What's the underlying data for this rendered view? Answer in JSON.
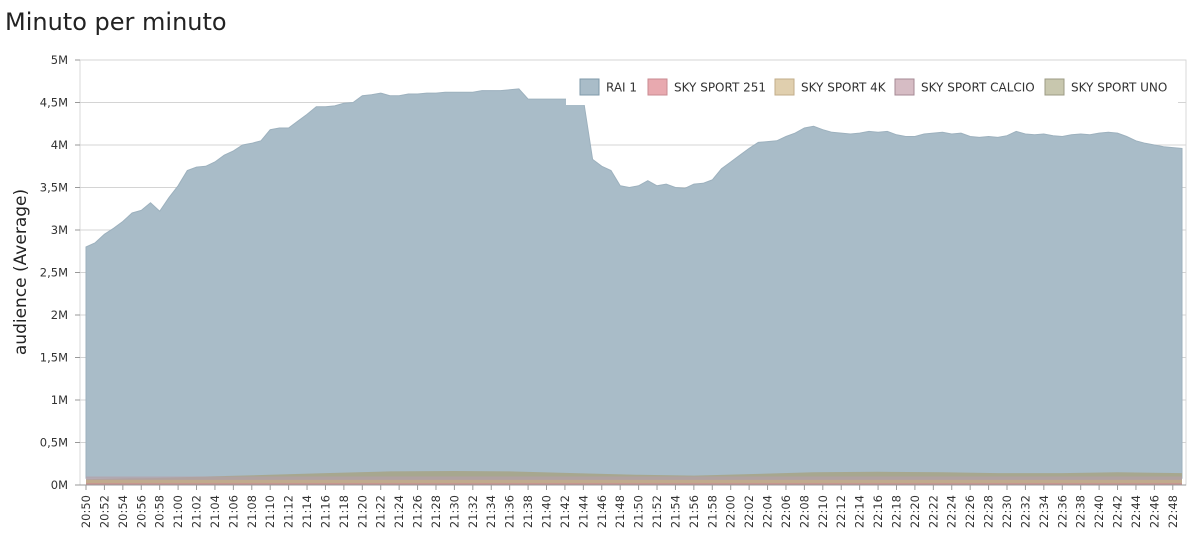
{
  "chart_data": {
    "type": "area",
    "title": "Minuto per minuto",
    "ylabel": "audience (Average)",
    "xlabel": "",
    "ylim": [
      0,
      5000000
    ],
    "yticks": [
      {
        "value": 0,
        "label": "0M"
      },
      {
        "value": 500000,
        "label": "0,5M"
      },
      {
        "value": 1000000,
        "label": "1M"
      },
      {
        "value": 1500000,
        "label": "1,5M"
      },
      {
        "value": 2000000,
        "label": "2M"
      },
      {
        "value": 2500000,
        "label": "2,5M"
      },
      {
        "value": 3000000,
        "label": "3M"
      },
      {
        "value": 3500000,
        "label": "3,5M"
      },
      {
        "value": 4000000,
        "label": "4M"
      },
      {
        "value": 4500000,
        "label": "4,5M"
      },
      {
        "value": 5000000,
        "label": "5M"
      }
    ],
    "x_tick_labels": [
      "20:50",
      "20:52",
      "20:54",
      "20:56",
      "20:58",
      "21:00",
      "21:02",
      "21:04",
      "21:06",
      "21:08",
      "21:10",
      "21:12",
      "21:14",
      "21:16",
      "21:18",
      "21:20",
      "21:22",
      "21:24",
      "21:26",
      "21:28",
      "21:30",
      "21:32",
      "21:34",
      "21:36",
      "21:38",
      "21:40",
      "21:42",
      "21:44",
      "21:46",
      "21:48",
      "21:50",
      "21:52",
      "21:54",
      "21:56",
      "21:58",
      "22:00",
      "22:02",
      "22:04",
      "22:06",
      "22:08",
      "22:10",
      "22:12",
      "22:14",
      "22:16",
      "22:18",
      "22:20",
      "22:22",
      "22:24",
      "22:26",
      "22:28",
      "22:30",
      "22:32",
      "22:34",
      "22:36",
      "22:38",
      "22:40",
      "22:42",
      "22:44",
      "22:46",
      "22:48"
    ],
    "x_minutes_total": 120,
    "grid": true,
    "legend_position": "top-right",
    "series": [
      {
        "name": "RAI 1",
        "color": "#a9bcc8",
        "legend_fill": "#a9bcc8",
        "legend_stroke": "#7f9aaa",
        "values": [
          2800000,
          2850000,
          2950000,
          3020000,
          3100000,
          3200000,
          3230000,
          3320000,
          3220000,
          3380000,
          3520000,
          3700000,
          3740000,
          3750000,
          3800000,
          3880000,
          3930000,
          4000000,
          4020000,
          4050000,
          4180000,
          4200000,
          4200000,
          4280000,
          4360000,
          4450000,
          4450000,
          4460000,
          4490000,
          4500000,
          4580000,
          4590000,
          4610000,
          4580000,
          4580000,
          4600000,
          4600000,
          4610000,
          4610000,
          4620000,
          4620000,
          4620000,
          4620000,
          4640000,
          4640000,
          4640000,
          4650000,
          4660000,
          4540000,
          4540000,
          4540000,
          4540000,
          4540000,
          4540000,
          4540000,
          3830000,
          3750000,
          3700000,
          3520000,
          3500000,
          3520000,
          3580000,
          3520000,
          3540000,
          3500000,
          3490000,
          3540000,
          3550000,
          3590000,
          3720000,
          3800000,
          3880000,
          3960000,
          4030000,
          4040000,
          4050000,
          4100000,
          4140000,
          4200000,
          4220000,
          4180000,
          4150000,
          4140000,
          4130000,
          4140000,
          4160000,
          4150000,
          4160000,
          4120000,
          4100000,
          4100000,
          4130000,
          4140000,
          4150000,
          4130000,
          4140000,
          4100000,
          4090000,
          4100000,
          4090000,
          4110000,
          4160000,
          4130000,
          4120000,
          4130000,
          4110000,
          4100000,
          4120000,
          4130000,
          4120000,
          4140000,
          4150000,
          4140000,
          4100000,
          4050000,
          4020000,
          4000000,
          3980000,
          3970000,
          3960000
        ],
        "bottom_value": 80000
      },
      {
        "name": "SKY SPORT 251",
        "color": "#c98a90",
        "legend_fill": "#e8a9af",
        "legend_stroke": "#c98a90",
        "level": 20000
      },
      {
        "name": "SKY SPORT 4K",
        "color": "#c2ad8a",
        "legend_fill": "#e0cfae",
        "legend_stroke": "#c2ad8a",
        "level": 60000
      },
      {
        "name": "SKY SPORT CALCIO",
        "color": "#b5a0a8",
        "legend_fill": "#d6bcc4",
        "legend_stroke": "#a58a94",
        "level": 100000
      },
      {
        "name": "SKY SPORT UNO",
        "color": "#a6a58c",
        "legend_fill": "#c8c7ae",
        "legend_stroke": "#9c9b84",
        "values_sample": [
          70000,
          80000,
          100000,
          120000,
          140000,
          160000,
          165000,
          160000,
          140000,
          120000,
          110000,
          130000,
          150000,
          155000,
          150000,
          140000,
          140000,
          150000,
          140000
        ]
      }
    ]
  }
}
